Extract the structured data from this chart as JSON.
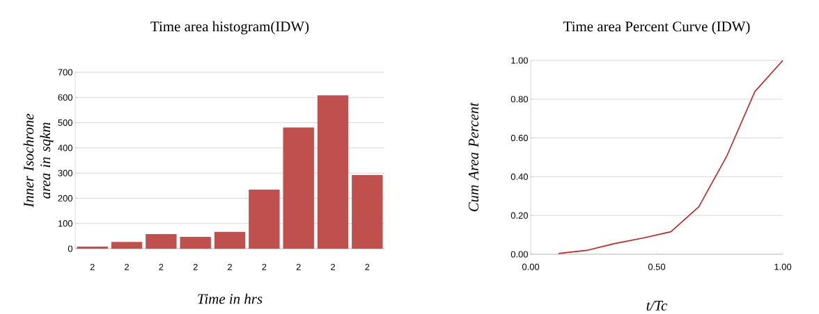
{
  "chart_data": [
    {
      "type": "bar",
      "title": "Time area histogram(IDW)",
      "xlabel": "Time in hrs",
      "ylabel": "Inner Isochrone area in sqkm",
      "categories": [
        "2",
        "2",
        "2",
        "2",
        "2",
        "2",
        "2",
        "2",
        "2"
      ],
      "values": [
        8,
        27,
        58,
        47,
        67,
        234,
        481,
        608,
        292
      ],
      "color": "#c0504d",
      "ylim": [
        0,
        700
      ],
      "yticks": [
        0,
        100,
        200,
        300,
        400,
        500,
        600,
        700
      ],
      "grid": "y"
    },
    {
      "type": "line",
      "title": "Time area Percent Curve (IDW)",
      "xlabel": "t/Tc",
      "ylabel": "Cum Area Percent",
      "x": [
        0.111,
        0.222,
        0.333,
        0.444,
        0.556,
        0.667,
        0.778,
        0.889,
        1.0
      ],
      "values": [
        0.004,
        0.02,
        0.055,
        0.083,
        0.116,
        0.245,
        0.507,
        0.839,
        1.0
      ],
      "color": "#c81e1e",
      "xlim": [
        0,
        1
      ],
      "xticks": [
        {
          "value": 0,
          "label": "0.00"
        },
        {
          "value": 0.5,
          "label": "0.50"
        },
        {
          "value": 1,
          "label": "1.00"
        }
      ],
      "ylim": [
        0,
        1
      ],
      "yticks": [
        {
          "value": 0,
          "label": "0.00"
        },
        {
          "value": 0.2,
          "label": "0.20"
        },
        {
          "value": 0.4,
          "label": "0.40"
        },
        {
          "value": 0.6,
          "label": "0.60"
        },
        {
          "value": 0.8,
          "label": "0.80"
        },
        {
          "value": 1,
          "label": "1.00"
        }
      ],
      "grid": "y"
    }
  ]
}
